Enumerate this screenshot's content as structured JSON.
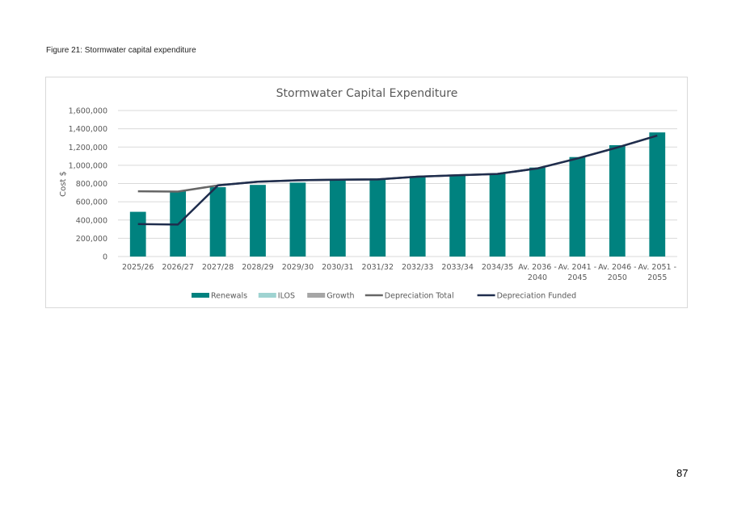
{
  "caption": "Figure 21: Stormwater capital expenditure",
  "page_number": "87",
  "colors": {
    "renewals": "#00827f",
    "ilos": "#9fd3d1",
    "growth": "#a6a6a6",
    "depreciation_total": "#666666",
    "depreciation_funded": "#1f2d4d",
    "grid": "#d9d9d9"
  },
  "chart_data": {
    "type": "bar",
    "title": "Stormwater Capital Expenditure",
    "xlabel": "",
    "ylabel": "Cost $",
    "ylim": [
      0,
      1600000
    ],
    "yticks": [
      "0",
      "200,000",
      "400,000",
      "600,000",
      "800,000",
      "1,000,000",
      "1,200,000",
      "1,400,000",
      "1,600,000"
    ],
    "grid": true,
    "legend_position": "bottom",
    "categories": [
      [
        "2025/26"
      ],
      [
        "2026/27"
      ],
      [
        "2027/28"
      ],
      [
        "2028/29"
      ],
      [
        "2029/30"
      ],
      [
        "2030/31"
      ],
      [
        "2031/32"
      ],
      [
        "2032/33"
      ],
      [
        "2033/34"
      ],
      [
        "2034/35"
      ],
      [
        "Av. 2036 -",
        "2040"
      ],
      [
        "Av. 2041 -",
        "2045"
      ],
      [
        "Av. 2046 -",
        "2050"
      ],
      [
        "Av. 2051 -",
        "2055"
      ]
    ],
    "series": [
      {
        "name": "Renewals",
        "kind": "bar",
        "color": "#00827f",
        "values": [
          490000,
          720000,
          760000,
          785000,
          810000,
          840000,
          855000,
          880000,
          895000,
          910000,
          975000,
          1090000,
          1220000,
          1360000
        ]
      },
      {
        "name": "ILOS",
        "kind": "bar",
        "color": "#9fd3d1",
        "values": [
          0,
          0,
          0,
          0,
          0,
          0,
          0,
          0,
          0,
          0,
          0,
          0,
          0,
          0
        ]
      },
      {
        "name": "Growth",
        "kind": "bar",
        "color": "#a6a6a6",
        "values": [
          0,
          0,
          0,
          0,
          0,
          0,
          0,
          0,
          0,
          0,
          0,
          0,
          0,
          0
        ]
      },
      {
        "name": "Depreciation Total",
        "kind": "line",
        "color": "#666666",
        "values": [
          715000,
          712000,
          780000,
          820000,
          835000,
          842000,
          845000,
          875000,
          890000,
          905000,
          965000,
          1075000,
          1195000,
          1325000
        ]
      },
      {
        "name": "Depreciation Funded",
        "kind": "line",
        "color": "#1f2d4d",
        "values": [
          355000,
          350000,
          780000,
          820000,
          835000,
          842000,
          845000,
          875000,
          890000,
          905000,
          965000,
          1075000,
          1195000,
          1325000
        ]
      }
    ]
  }
}
